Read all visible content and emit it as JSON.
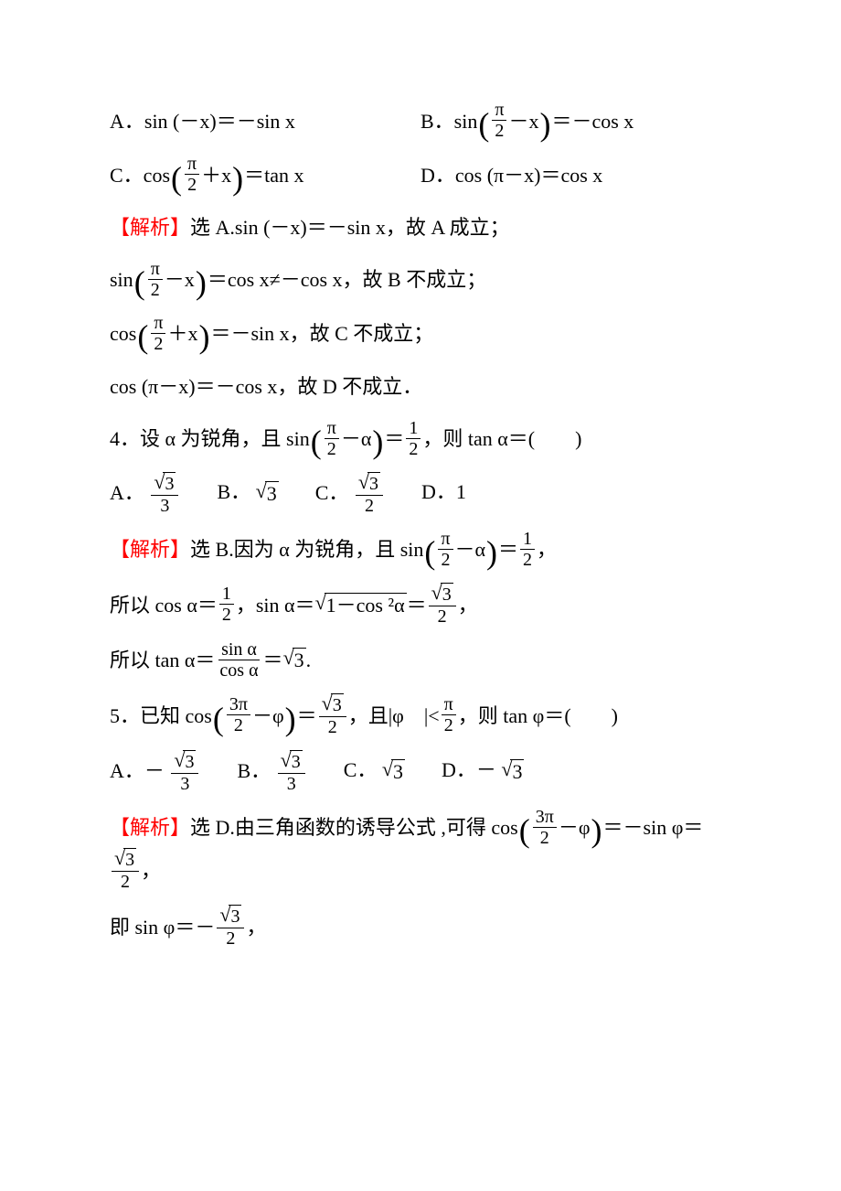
{
  "colors": {
    "text": "#000000",
    "accent": "#ff0000",
    "background": "#ffffff"
  },
  "typography": {
    "body_fontsize_pt": 16,
    "frac_fontsize_pt": 15,
    "font_family": "Times New Roman / SimSun"
  },
  "q3": {
    "options": {
      "A": "A．sin (－x)＝－sin x",
      "B_pre": "B．sin ",
      "B_inner_num": "π",
      "B_inner_den": "2",
      "B_inner_tail": "－x",
      "B_post": "＝－cos x",
      "C_pre": "C．cos ",
      "C_inner_num": "π",
      "C_inner_den": "2",
      "C_inner_tail": "＋x",
      "C_post": "＝tan x",
      "D": "D．cos (π－x)＝cos x"
    },
    "sol": {
      "label": "【解析】",
      "l1": "选 A.sin (－x)＝－sin x，故 A 成立；",
      "l2_pre": "sin ",
      "l2_num": "π",
      "l2_den": "2",
      "l2_tail": "－x",
      "l2_post": "＝cos x≠－cos x，故 B 不成立；",
      "l3_pre": "cos ",
      "l3_num": "π",
      "l3_den": "2",
      "l3_tail": "＋x",
      "l3_post": "＝－sin x，故 C 不成立；",
      "l4": "cos (π－x)＝－cos x，故 D 不成立．"
    }
  },
  "q4": {
    "stem_pre": "4．设 α 为锐角，且 sin ",
    "stem_num": "π",
    "stem_den": "2",
    "stem_tail": "－α",
    "stem_mid": "＝",
    "stem_rnum": "1",
    "stem_rden": "2",
    "stem_post": "，则 tan α＝(　　)",
    "opts": {
      "A_pre": "A．",
      "A_num": "3",
      "A_den": "3",
      "B_pre": "B．",
      "B_val": "3",
      "C_pre": "C．",
      "C_num": "3",
      "C_den": "2",
      "D": "D．1"
    },
    "sol": {
      "label": "【解析】",
      "l1_pre": "选 B.因为 α 为锐角，且 sin ",
      "l1_num": "π",
      "l1_den": "2",
      "l1_tail": "－α",
      "l1_mid": "＝",
      "l1_rnum": "1",
      "l1_rden": "2",
      "l1_post": "，",
      "l2_pre": "所以 cos α＝",
      "l2_num": "1",
      "l2_den": "2",
      "l2_mid": "，sin α＝",
      "l2_sqrt": "1－cos ²α",
      "l2_eq": "＝",
      "l2_rnum": "3",
      "l2_rden": "2",
      "l2_post": "，",
      "l3_pre": "所以 tan α＝",
      "l3_num": "sin α",
      "l3_den": "cos α",
      "l3_mid": "＝",
      "l3_sqrt": "3",
      "l3_post": "."
    }
  },
  "q5": {
    "stem_pre": "5．已知 cos ",
    "stem_num": "3π",
    "stem_den": "2",
    "stem_tail": "－φ",
    "stem_mid": "＝",
    "stem_rnum": "3",
    "stem_rden": "2",
    "stem_mid2": "，且|φ　|<",
    "stem_b_num": "π",
    "stem_b_den": "2",
    "stem_post": "，则 tan φ＝(　　)",
    "opts": {
      "A_pre": "A．－",
      "A_num": "3",
      "A_den": "3",
      "B_pre": "B．",
      "B_num": "3",
      "B_den": "3",
      "C_pre": "C．",
      "C_val": "3",
      "D_pre": "D．－",
      "D_val": "3"
    },
    "sol": {
      "label": "【解析】",
      "l1_pre": "选 D.由三角函数的诱导公式 ,可得 cos ",
      "l1_num": "3π",
      "l1_den": "2",
      "l1_tail": "－φ",
      "l1_mid": "＝－sin φ＝",
      "l1_rnum": "3",
      "l1_rden": "2",
      "l1_post": "，",
      "l2_pre": "即 sin φ＝－",
      "l2_num": "3",
      "l2_den": "2",
      "l2_post": "，"
    }
  }
}
